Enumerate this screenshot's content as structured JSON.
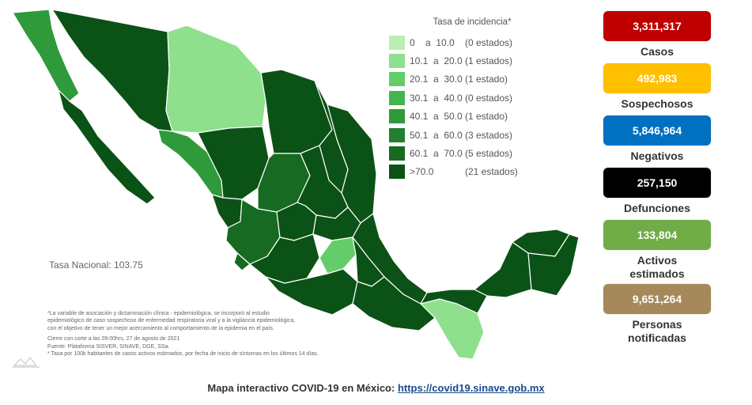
{
  "legend": {
    "title": "Tasa de incidencia*",
    "rows": [
      {
        "range": "0    a  10.0",
        "count": "(0 estados)",
        "color": "#b8f0b2"
      },
      {
        "range": "10.1  a  20.0",
        "count": "(1 estados)",
        "color": "#8fe08d"
      },
      {
        "range": "20.1  a  30.0",
        "count": "(1 estado)",
        "color": "#64cd6a"
      },
      {
        "range": "30.1  a  40.0",
        "count": "(0 estados)",
        "color": "#43b54d"
      },
      {
        "range": "40.1  a  50.0",
        "count": "(1 estado)",
        "color": "#2f9a3a"
      },
      {
        "range": "50.1  a  60.0",
        "count": "(3 estados)",
        "color": "#217f2d"
      },
      {
        "range": "60.1  a  70.0",
        "count": "(5 estados)",
        "color": "#166a22"
      },
      {
        "range": ">70.0",
        "count": "(21 estados)",
        "color": "#0b5216"
      }
    ]
  },
  "tasa_nacional": "Tasa Nacional: 103.75",
  "notes": [
    "*La variable de asociación y dictaminación clínica - epidemiológica, se incorporó al estudio",
    "epidemiológico de caso sospechoso de enfermedad respiratoria viral y a la vigilancia epidemiológica,",
    "con el objetivo de tener un mejor acercamiento al comportamiento de la epidemia en el país.",
    "Cierre con corte a las 09:00hrs, 27 de agosto de 2021",
    "Fuente: Plataforma SISVER, SINAVE, DGE, SSa.",
    "* Tasa por 100k habitantes de casos activos estimados, por fecha de inicio de síntomas en los últimos 14 días."
  ],
  "stats": [
    {
      "value": "3,311,317",
      "label": "Casos",
      "color": "#c00000"
    },
    {
      "value": "492,983",
      "label": "Sospechosos",
      "color": "#ffc000"
    },
    {
      "value": "5,846,964",
      "label": "Negativos",
      "color": "#0070c0"
    },
    {
      "value": "257,150",
      "label": "Defunciones",
      "color": "#000000"
    },
    {
      "value": "133,804",
      "label": "Activos estimados",
      "color": "#70ad47"
    },
    {
      "value": "9,651,264",
      "label": "Personas notificadas",
      "color": "#a5895a"
    }
  ],
  "footer": {
    "text": "Mapa interactivo COVID-19 en México: ",
    "link": "https://covid19.sinave.gob.mx"
  },
  "map_colors": {
    "darkest": "#0b5216",
    "dark": "#166a22",
    "mid_dark": "#217f2d",
    "mid": "#2f9a3a",
    "light_mid": "#64cd6a",
    "light": "#8fe08d",
    "border": "#ffffff"
  }
}
